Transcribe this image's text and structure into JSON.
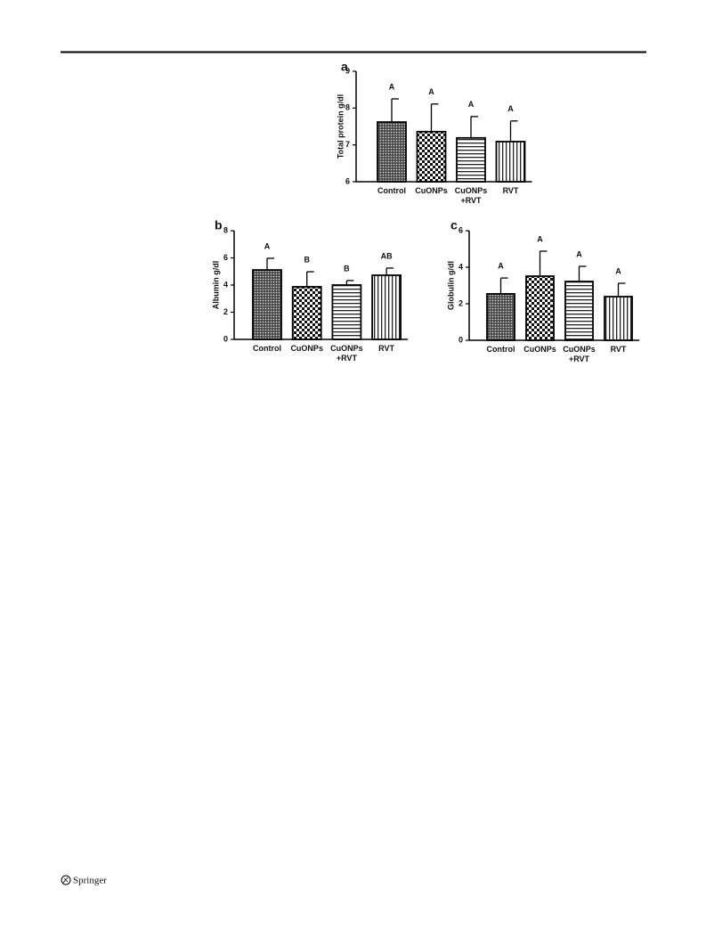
{
  "chart_data": [
    {
      "type": "bar",
      "panel": "a",
      "ylabel": "Total protein g/dl",
      "categories": [
        "Control",
        "CuONPs",
        "CuONPs\n+RVT",
        "RVT"
      ],
      "values": [
        7.62,
        7.36,
        7.19,
        7.09
      ],
      "errors": [
        0.63,
        0.75,
        0.58,
        0.56
      ],
      "annotations": [
        "A",
        "A",
        "A",
        "A"
      ],
      "ylim": [
        6,
        9
      ],
      "yticks": [
        6,
        7,
        8,
        9
      ]
    },
    {
      "type": "bar",
      "panel": "b",
      "ylabel": "Albumin g/dl",
      "categories": [
        "Control",
        "CuONPs",
        "CuONPs\n+RVT",
        "RVT"
      ],
      "values": [
        5.11,
        3.87,
        4.0,
        4.72
      ],
      "errors": [
        0.86,
        1.11,
        0.33,
        0.53
      ],
      "annotations": [
        "A",
        "B",
        "B",
        "AB"
      ],
      "ylim": [
        0,
        8
      ],
      "yticks": [
        0,
        2,
        4,
        6,
        8
      ]
    },
    {
      "type": "bar",
      "panel": "c",
      "ylabel": "Globulin g/dl",
      "categories": [
        "Control",
        "CuONPs",
        "CuONPs\n+RVT",
        "RVT"
      ],
      "values": [
        2.54,
        3.51,
        3.22,
        2.39
      ],
      "errors": [
        0.87,
        1.37,
        0.83,
        0.73
      ],
      "annotations": [
        "A",
        "A",
        "A",
        "A"
      ],
      "ylim": [
        0,
        6
      ],
      "yticks": [
        0,
        2,
        4,
        6
      ]
    }
  ],
  "footer": "Springer"
}
